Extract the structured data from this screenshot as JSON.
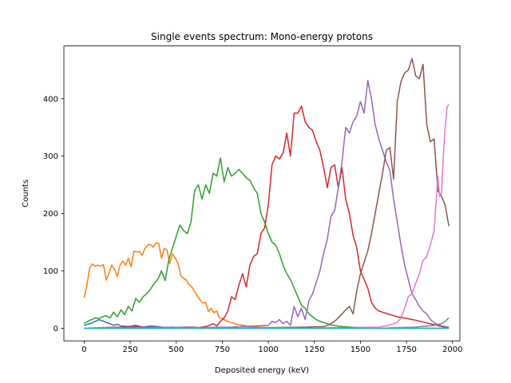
{
  "chart_data": {
    "type": "line",
    "title": "Single events spectrum: Mono-energy protons",
    "xlabel": "Deposited energy (keV)",
    "ylabel": "Counts",
    "xlim": [
      -110,
      2040
    ],
    "ylim": [
      -22,
      492
    ],
    "xticks": [
      0,
      250,
      500,
      750,
      1000,
      1250,
      1500,
      1750,
      2000
    ],
    "yticks": [
      0,
      100,
      200,
      300,
      400
    ],
    "grid": false,
    "series": [
      {
        "color": "#1f77b4",
        "x": [
          0,
          20,
          40,
          60,
          80,
          100,
          120,
          140,
          160,
          180,
          200,
          240,
          280,
          320,
          360,
          400,
          440,
          480,
          520,
          560,
          600,
          700,
          800,
          900,
          1000,
          1200,
          1400,
          1600,
          1800,
          1980
        ],
        "y": [
          5,
          7,
          9,
          12,
          15,
          13,
          10,
          8,
          5,
          7,
          4,
          3,
          5,
          2,
          4,
          3,
          1,
          2,
          1,
          0,
          1,
          0,
          0,
          0,
          0,
          0,
          0,
          0,
          0,
          0
        ]
      },
      {
        "color": "#ff7f0e",
        "x": [
          0,
          15,
          30,
          45,
          60,
          75,
          90,
          105,
          120,
          135,
          150,
          165,
          180,
          195,
          210,
          225,
          240,
          255,
          270,
          285,
          300,
          315,
          330,
          345,
          360,
          375,
          390,
          405,
          420,
          435,
          450,
          465,
          480,
          495,
          510,
          525,
          540,
          555,
          570,
          585,
          600,
          615,
          630,
          645,
          660,
          675,
          690,
          705,
          720,
          735,
          750,
          765,
          780,
          800,
          830,
          860,
          900,
          950,
          1000,
          1100,
          1200,
          1400,
          1600,
          1800,
          1980
        ],
        "y": [
          53,
          75,
          105,
          112,
          108,
          110,
          108,
          111,
          84,
          96,
          110,
          103,
          90,
          110,
          117,
          110,
          122,
          107,
          134,
          133,
          134,
          127,
          139,
          145,
          146,
          141,
          149,
          148,
          122,
          139,
          136,
          113,
          130,
          122,
          113,
          91,
          87,
          84,
          76,
          72,
          64,
          56,
          49,
          44,
          45,
          29,
          35,
          27,
          30,
          18,
          17,
          14,
          12,
          10,
          7,
          5,
          3,
          2,
          1,
          1,
          0,
          0,
          0,
          0,
          0
        ]
      },
      {
        "color": "#2ca02c",
        "x": [
          0,
          20,
          40,
          60,
          80,
          100,
          120,
          140,
          160,
          180,
          200,
          220,
          240,
          260,
          280,
          300,
          320,
          340,
          360,
          380,
          400,
          420,
          440,
          460,
          480,
          500,
          520,
          540,
          560,
          580,
          600,
          620,
          640,
          660,
          680,
          700,
          720,
          740,
          760,
          780,
          800,
          820,
          840,
          860,
          880,
          900,
          920,
          940,
          960,
          980,
          1000,
          1020,
          1040,
          1060,
          1080,
          1100,
          1120,
          1140,
          1160,
          1180,
          1200,
          1220,
          1240,
          1260,
          1280,
          1300,
          1350,
          1400,
          1450,
          1500,
          1600,
          1800,
          1980
        ],
        "y": [
          8,
          12,
          15,
          18,
          17,
          20,
          22,
          18,
          28,
          20,
          32,
          24,
          38,
          30,
          52,
          45,
          55,
          60,
          68,
          78,
          85,
          100,
          83,
          120,
          140,
          160,
          180,
          170,
          165,
          185,
          240,
          250,
          225,
          250,
          235,
          270,
          265,
          297,
          255,
          280,
          265,
          270,
          277,
          270,
          262,
          258,
          245,
          235,
          200,
          185,
          165,
          150,
          145,
          130,
          110,
          95,
          85,
          70,
          55,
          40,
          35,
          25,
          20,
          15,
          12,
          10,
          5,
          3,
          2,
          1,
          0,
          0,
          0
        ]
      },
      {
        "color": "#d62728",
        "x": [
          0,
          100,
          200,
          300,
          400,
          500,
          550,
          600,
          620,
          640,
          660,
          680,
          700,
          720,
          740,
          760,
          780,
          800,
          820,
          840,
          860,
          880,
          900,
          920,
          940,
          960,
          980,
          1000,
          1020,
          1040,
          1060,
          1080,
          1100,
          1120,
          1140,
          1160,
          1180,
          1200,
          1220,
          1240,
          1260,
          1280,
          1300,
          1320,
          1340,
          1360,
          1380,
          1400,
          1420,
          1440,
          1460,
          1480,
          1500,
          1520,
          1540,
          1560,
          1580,
          1600,
          1700,
          1800,
          1980
        ],
        "y": [
          0,
          1,
          2,
          3,
          0,
          1,
          2,
          2,
          1,
          2,
          3,
          5,
          8,
          4,
          12,
          18,
          30,
          55,
          50,
          75,
          95,
          72,
          110,
          125,
          130,
          165,
          175,
          215,
          285,
          300,
          295,
          305,
          340,
          300,
          375,
          375,
          387,
          360,
          350,
          345,
          325,
          310,
          280,
          245,
          280,
          285,
          245,
          280,
          225,
          200,
          162,
          140,
          100,
          85,
          70,
          45,
          35,
          30,
          20,
          14,
          0
        ]
      },
      {
        "color": "#9467bd",
        "x": [
          0,
          200,
          400,
          600,
          800,
          1000,
          1020,
          1040,
          1060,
          1080,
          1100,
          1120,
          1140,
          1160,
          1180,
          1200,
          1220,
          1240,
          1260,
          1280,
          1300,
          1320,
          1340,
          1360,
          1380,
          1400,
          1420,
          1440,
          1460,
          1480,
          1500,
          1520,
          1540,
          1560,
          1580,
          1600,
          1620,
          1640,
          1660,
          1680,
          1700,
          1720,
          1740,
          1760,
          1780,
          1800,
          1820,
          1840,
          1860,
          1880,
          1900,
          1920,
          1940,
          1960,
          1980
        ],
        "y": [
          0,
          1,
          2,
          1,
          2,
          5,
          12,
          10,
          15,
          8,
          12,
          5,
          38,
          20,
          35,
          15,
          48,
          60,
          80,
          100,
          130,
          155,
          195,
          205,
          245,
          290,
          350,
          340,
          360,
          370,
          395,
          375,
          432,
          400,
          355,
          330,
          310,
          290,
          275,
          225,
          185,
          145,
          110,
          85,
          60,
          50,
          38,
          30,
          25,
          15,
          10,
          6,
          4,
          3,
          2
        ]
      },
      {
        "color": "#8c564b",
        "x": [
          0,
          400,
          800,
          1200,
          1300,
          1320,
          1340,
          1360,
          1380,
          1400,
          1420,
          1440,
          1460,
          1480,
          1500,
          1520,
          1540,
          1560,
          1580,
          1600,
          1620,
          1640,
          1660,
          1680,
          1700,
          1720,
          1740,
          1760,
          1780,
          1800,
          1820,
          1840,
          1860,
          1880,
          1900,
          1920,
          1940,
          1960,
          1980
        ],
        "y": [
          0,
          0,
          0,
          2,
          3,
          5,
          8,
          12,
          18,
          25,
          32,
          38,
          25,
          65,
          95,
          115,
          135,
          165,
          200,
          235,
          270,
          310,
          315,
          260,
          395,
          430,
          445,
          450,
          470,
          440,
          435,
          460,
          355,
          325,
          330,
          240,
          230,
          215,
          178
        ]
      },
      {
        "color": "#e377c2",
        "x": [
          0,
          400,
          800,
          1200,
          1600,
          1650,
          1700,
          1720,
          1740,
          1760,
          1780,
          1800,
          1820,
          1840,
          1860,
          1880,
          1900,
          1920,
          1930,
          1940,
          1950,
          1960,
          1970,
          1980
        ],
        "y": [
          0,
          0,
          0,
          0,
          2,
          5,
          10,
          18,
          35,
          55,
          60,
          78,
          95,
          118,
          125,
          145,
          170,
          265,
          230,
          235,
          300,
          350,
          385,
          390
        ]
      },
      {
        "color": "#7f7f7f",
        "x": [
          0,
          200,
          400,
          600,
          800,
          1000,
          1200,
          1400,
          1600,
          1800,
          1900,
          1940,
          1960,
          1980
        ],
        "y": [
          0,
          1,
          0,
          1,
          0,
          1,
          0,
          1,
          0,
          2,
          5,
          8,
          12,
          18
        ]
      },
      {
        "color": "#bcbd22",
        "x": [
          0,
          500,
          1000,
          1500,
          1980
        ],
        "y": [
          0,
          0,
          0,
          0,
          0
        ]
      },
      {
        "color": "#17becf",
        "x": [
          0,
          500,
          1000,
          1500,
          1980
        ],
        "y": [
          0,
          0,
          0,
          0,
          0
        ]
      }
    ]
  }
}
